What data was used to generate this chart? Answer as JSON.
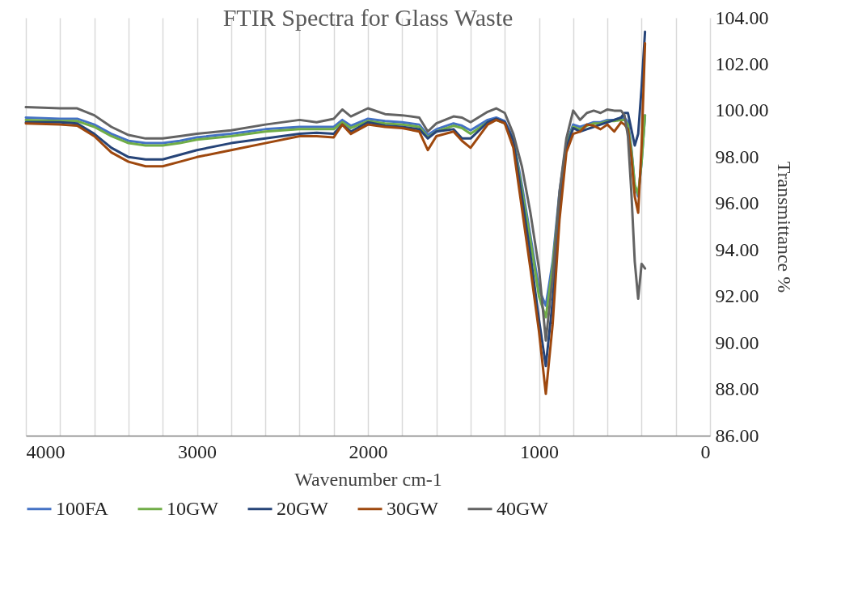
{
  "chart_data": {
    "type": "line",
    "title": "FTIR Spectra for Glass Waste",
    "xlabel": "Wavenumber cm-1",
    "ylabel": "Transmittance %",
    "x": [
      4000,
      3800,
      3700,
      3600,
      3500,
      3400,
      3300,
      3200,
      3100,
      3000,
      2800,
      2600,
      2400,
      2300,
      2200,
      2150,
      2100,
      2000,
      1900,
      1800,
      1700,
      1650,
      1600,
      1500,
      1450,
      1400,
      1300,
      1250,
      1200,
      1150,
      1100,
      1050,
      1000,
      960,
      920,
      880,
      840,
      800,
      760,
      720,
      680,
      640,
      600,
      560,
      520,
      500,
      480,
      460,
      440,
      420,
      400,
      380
    ],
    "series": [
      {
        "name": "100FA",
        "color": "#4472c4",
        "values": [
          99.7,
          99.65,
          99.65,
          99.4,
          99.0,
          98.7,
          98.6,
          98.6,
          98.7,
          98.85,
          99.0,
          99.2,
          99.3,
          99.3,
          99.3,
          99.6,
          99.35,
          99.65,
          99.55,
          99.5,
          99.4,
          98.95,
          99.2,
          99.45,
          99.35,
          99.15,
          99.6,
          99.7,
          99.55,
          98.8,
          96.8,
          94.6,
          92.3,
          91.6,
          93.5,
          96.5,
          98.6,
          99.4,
          99.3,
          99.4,
          99.5,
          99.5,
          99.6,
          99.6,
          99.7,
          99.7,
          99.5,
          98.4,
          96.8,
          96.3,
          97.8,
          99.8
        ]
      },
      {
        "name": "10GW",
        "color": "#70ad47",
        "values": [
          99.6,
          99.55,
          99.55,
          99.3,
          98.9,
          98.6,
          98.5,
          98.5,
          98.6,
          98.75,
          98.9,
          99.1,
          99.2,
          99.2,
          99.2,
          99.5,
          99.25,
          99.55,
          99.45,
          99.4,
          99.3,
          98.85,
          99.1,
          99.35,
          99.25,
          99.0,
          99.5,
          99.6,
          99.45,
          98.7,
          96.6,
          94.4,
          92.0,
          91.1,
          93.3,
          96.3,
          98.5,
          99.3,
          99.2,
          99.35,
          99.45,
          99.45,
          99.55,
          99.55,
          99.6,
          99.6,
          99.4,
          98.3,
          96.8,
          96.4,
          97.8,
          99.8
        ]
      },
      {
        "name": "20GW",
        "color": "#264478",
        "values": [
          99.5,
          99.5,
          99.45,
          99.0,
          98.4,
          98.0,
          97.9,
          97.9,
          98.1,
          98.3,
          98.6,
          98.8,
          99.0,
          99.05,
          99.0,
          99.4,
          99.1,
          99.5,
          99.35,
          99.3,
          99.2,
          98.8,
          99.1,
          99.2,
          98.8,
          98.8,
          99.5,
          99.65,
          99.5,
          98.7,
          96.3,
          93.8,
          91.0,
          89.0,
          91.8,
          95.8,
          98.4,
          99.25,
          99.1,
          99.2,
          99.3,
          99.4,
          99.5,
          99.6,
          99.7,
          99.9,
          99.9,
          99.2,
          98.5,
          99.0,
          101.0,
          103.4
        ]
      },
      {
        "name": "30GW",
        "color": "#9e480e",
        "values": [
          99.45,
          99.4,
          99.35,
          98.9,
          98.2,
          97.8,
          97.6,
          97.6,
          97.8,
          98.0,
          98.3,
          98.6,
          98.9,
          98.9,
          98.85,
          99.4,
          99.0,
          99.4,
          99.3,
          99.25,
          99.1,
          98.3,
          98.9,
          99.1,
          98.7,
          98.4,
          99.4,
          99.6,
          99.45,
          98.4,
          95.8,
          93.2,
          90.5,
          87.8,
          90.8,
          95.3,
          98.2,
          99.0,
          99.1,
          99.4,
          99.35,
          99.2,
          99.4,
          99.1,
          99.5,
          99.4,
          99.2,
          98.0,
          96.3,
          95.6,
          98.5,
          102.9
        ]
      },
      {
        "name": "40GW",
        "color": "#636363",
        "values": [
          100.15,
          100.1,
          100.1,
          99.8,
          99.3,
          98.95,
          98.8,
          98.8,
          98.9,
          99.0,
          99.15,
          99.4,
          99.6,
          99.5,
          99.65,
          100.05,
          99.75,
          100.1,
          99.85,
          99.8,
          99.7,
          99.1,
          99.45,
          99.75,
          99.7,
          99.5,
          99.95,
          100.1,
          99.9,
          99.0,
          97.6,
          95.6,
          93.2,
          90.1,
          92.8,
          96.5,
          98.8,
          100.0,
          99.6,
          99.9,
          100.0,
          99.9,
          100.05,
          100.0,
          100.0,
          99.8,
          98.9,
          96.5,
          93.5,
          91.9,
          93.4,
          93.2
        ]
      }
    ],
    "xlim": [
      4000,
      0
    ],
    "xticks": [
      4000,
      {
        "value": 3800,
        "label": null
      },
      {
        "value": 3600,
        "label": null
      },
      {
        "value": 3400,
        "label": null
      },
      {
        "value": 3200,
        "label": null
      },
      3000,
      {
        "value": 2800,
        "label": null
      },
      {
        "value": 2600,
        "label": null
      },
      {
        "value": 2400,
        "label": null
      },
      {
        "value": 2200,
        "label": null
      },
      2000,
      {
        "value": 1800,
        "label": null
      },
      {
        "value": 1600,
        "label": null
      },
      {
        "value": 1400,
        "label": null
      },
      {
        "value": 1200,
        "label": null
      },
      1000,
      {
        "value": 800,
        "label": null
      },
      {
        "value": 600,
        "label": null
      },
      {
        "value": 400,
        "label": null
      },
      {
        "value": 200,
        "label": null
      },
      0
    ],
    "ylim": [
      86,
      104
    ],
    "yticks": [
      {
        "value": 86,
        "label": "86.00"
      },
      {
        "value": 88,
        "label": "88.00"
      },
      {
        "value": 90,
        "label": "90.00"
      },
      {
        "value": 92,
        "label": "92.00"
      },
      {
        "value": 94,
        "label": "94.00"
      },
      {
        "value": 96,
        "label": "96.00"
      },
      {
        "value": 98,
        "label": "98.00"
      },
      {
        "value": 100,
        "label": "100.00"
      },
      {
        "value": 102,
        "label": "102.00"
      },
      {
        "value": 104,
        "label": "104.00"
      }
    ],
    "grid": "x",
    "legend": "bottom",
    "marker": "none",
    "line_style": "solid"
  }
}
